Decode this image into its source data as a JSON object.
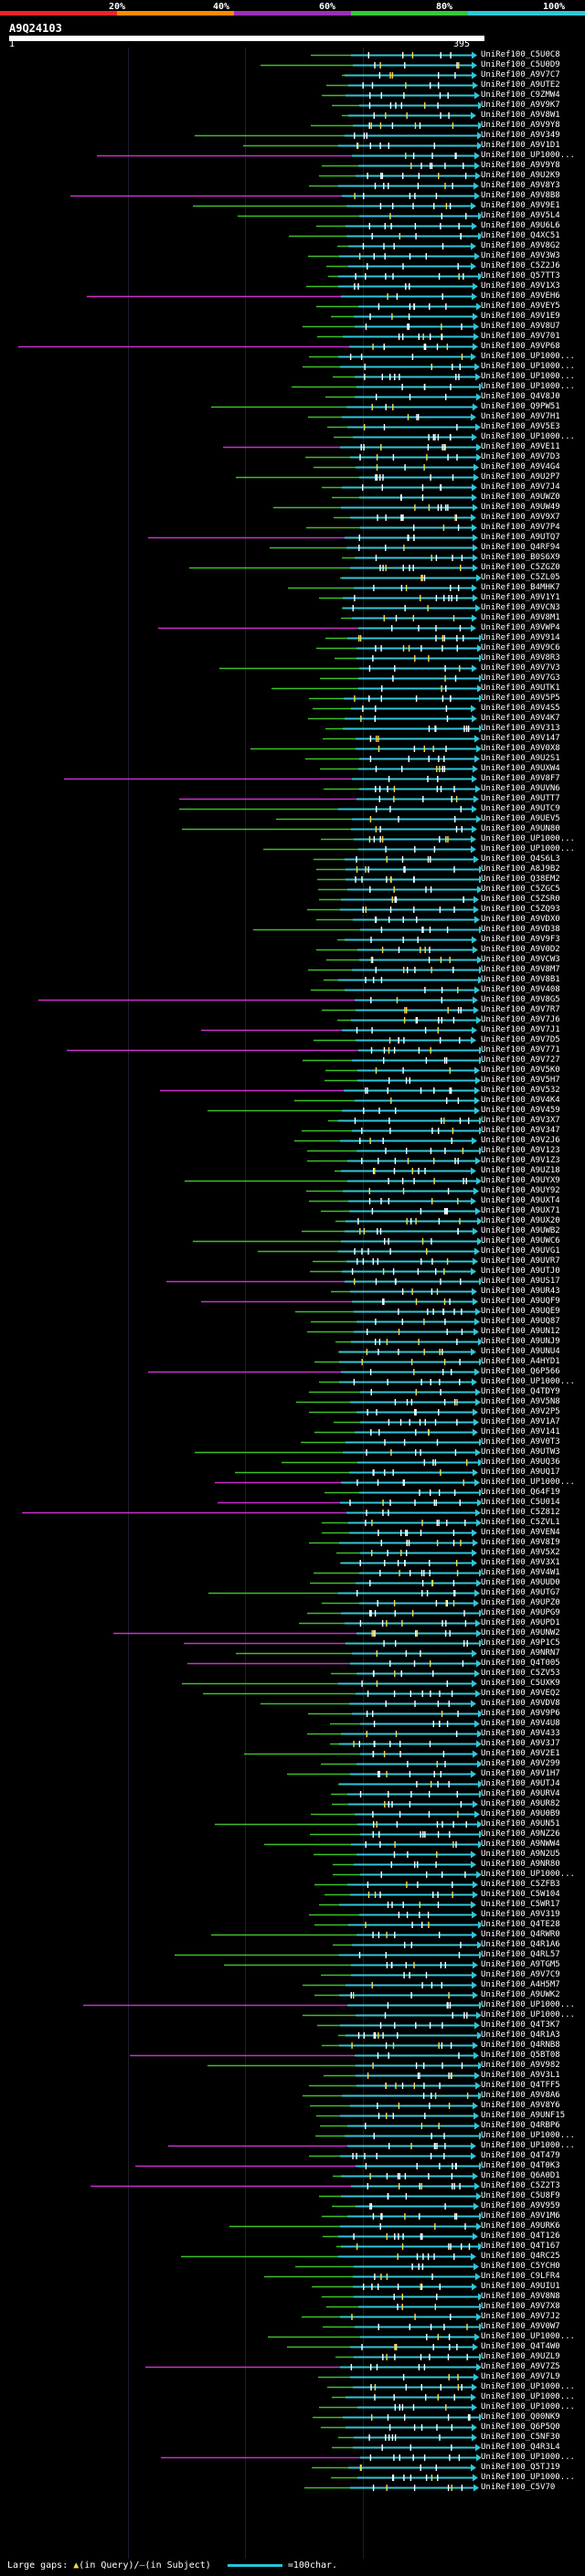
{
  "legend": {
    "labels": [
      "20%",
      "40%",
      "60%",
      "80%",
      "100%"
    ],
    "colors": [
      "#e8262a",
      "#ff8a00",
      "#9b2fb7",
      "#37c83a",
      "#2ec7d8"
    ]
  },
  "query": {
    "title": "A9Q24103",
    "start_label": "1",
    "end_label": "395"
  },
  "colors": {
    "cyan": "#2ec7d8",
    "green": "#3cbf27",
    "magenta": "#cc2fcc",
    "yellow": "#ffd84a",
    "white": "#ffffff"
  },
  "hits": [
    "UniRef100_C5U0C8",
    "UniRef100_C5U0D9",
    "UniRef100_A9V7C7",
    "UniRef100_A9UTE2",
    "UniRef100_C9ZMW4",
    "UniRef100_A9V9K7",
    "UniRef100_A9V8W1",
    "UniRef100_A9V9Y8",
    "UniRef100_A9V349",
    "UniRef100_A9V1D1",
    "UniRef100_UP1000...",
    "UniRef100_A9V9Y8",
    "UniRef100_A9U2K9",
    "UniRef100_A9V8Y3",
    "UniRef100_A9V8B8",
    "UniRef100_A9V9E1",
    "UniRef100_A9V5L4",
    "UniRef100_A9U6L6",
    "UniRef100_Q4XC51",
    "UniRef100_A9V8G2",
    "UniRef100_A9V3W3",
    "UniRef100_C5Z2J6",
    "UniRef100_Q57TT3",
    "UniRef100_A9V1X3",
    "UniRef100_A9VEH6",
    "UniRef100_A9VEY5",
    "UniRef100_A9V1E9",
    "UniRef100_A9V8U7",
    "UniRef100_A9V701",
    "UniRef100_A9VP68",
    "UniRef100_UP1000...",
    "UniRef100_UP1000...",
    "UniRef100_UP1000...",
    "UniRef100_UP1000...",
    "UniRef100_Q4V8J0",
    "UniRef100_Q9PW51",
    "UniRef100_A9V7H1",
    "UniRef100_A9V5E3",
    "UniRef100_UP1000...",
    "UniRef100_A9VE11",
    "UniRef100_A9V7D3",
    "UniRef100_A9V4G4",
    "UniRef100_A9U2P7",
    "UniRef100_A9V7J4",
    "UniRef100_A9UWZ0",
    "UniRef100_A9UW49",
    "UniRef100_A9V9X7",
    "UniRef100_A9V7P4",
    "UniRef100_A9UTQ7",
    "UniRef100_Q4RF94",
    "UniRef100_B0S6X9",
    "UniRef100_C5ZGZ0",
    "UniRef100_C5ZL05",
    "UniRef100_B4MHK7",
    "UniRef100_A9V1Y1",
    "UniRef100_A9VCN3",
    "UniRef100_A9V8M1",
    "UniRef100_A9VWP4",
    "UniRef100_A9V914",
    "UniRef100_A9V9C6",
    "UniRef100_A9V8R3",
    "UniRef100_A9V7V3",
    "UniRef100_A9V7G3",
    "UniRef100_A9UTK1",
    "UniRef100_A9V5P5",
    "UniRef100_A9V4S5",
    "UniRef100_A9V4K7",
    "UniRef100_A9V313",
    "UniRef100_A9V147",
    "UniRef100_A9V0X8",
    "UniRef100_A9U2S1",
    "UniRef100_A9UXW4",
    "UniRef100_A9V8F7",
    "UniRef100_A9UVN6",
    "UniRef100_A9UTT7",
    "UniRef100_A9UTC9",
    "UniRef100_A9UEV5",
    "UniRef100_A9UN80",
    "UniRef100_UP1000...",
    "UniRef100_UP1000...",
    "UniRef100_Q4S6L3",
    "UniRef100_A8J9B2",
    "UniRef100_Q38EM2",
    "UniRef100_C5ZGC5",
    "UniRef100_C5ZSR0",
    "UniRef100_C5ZQ93",
    "UniRef100_A9VDX0",
    "UniRef100_A9VD38",
    "UniRef100_A9V9F3",
    "UniRef100_A9V0D2",
    "UniRef100_A9VCW3",
    "UniRef100_A9V8M7",
    "UniRef100_A9V8B1",
    "UniRef100_A9V408",
    "UniRef100_A9V8G5",
    "UniRef100_A9V7R7",
    "UniRef100_A9V7J6",
    "UniRef100_A9V7J1",
    "UniRef100_A9V7D5",
    "UniRef100_A9V771",
    "UniRef100_A9V727",
    "UniRef100_A9V5K0",
    "UniRef100_A9V5H7",
    "UniRef100_A9V532",
    "UniRef100_A9V4K4",
    "UniRef100_A9V459",
    "UniRef100_A9V3X7",
    "UniRef100_A9V347",
    "UniRef100_A9V2J6",
    "UniRef100_A9V123",
    "UniRef100_A9V1Z3",
    "UniRef100_A9UZ18",
    "UniRef100_A9UYX9",
    "UniRef100_A9UY92",
    "UniRef100_A9UXT4",
    "UniRef100_A9UX71",
    "UniRef100_A9UX20",
    "UniRef100_A9UWB2",
    "UniRef100_A9UWC6",
    "UniRef100_A9UVG1",
    "UniRef100_A9UVR7",
    "UniRef100_A9UTJ0",
    "UniRef100_A9US17",
    "UniRef100_A9UR43",
    "UniRef100_A9UQF9",
    "UniRef100_A9UQE9",
    "UniRef100_A9UQ87",
    "UniRef100_A9UN12",
    "UniRef100_A9UNJ9",
    "UniRef100_A9UNU4",
    "UniRef100_A4HYD1",
    "UniRef100_Q6P566",
    "UniRef100_UP1000...",
    "UniRef100_Q4TDY9",
    "UniRef100_A9V5N8",
    "UniRef100_A9V2P5",
    "UniRef100_A9V1A7",
    "UniRef100_A9V141",
    "UniRef100_A9V0T3",
    "UniRef100_A9UTW3",
    "UniRef100_A9UQ36",
    "UniRef100_A9UQ17",
    "UniRef100_UP1000...",
    "UniRef100_Q64F19",
    "UniRef100_C5U014",
    "UniRef100_C5Z812",
    "UniRef100_C5ZVL1",
    "UniRef100_A9VEN4",
    "UniRef100_A9V8I9",
    "UniRef100_A9V5X2",
    "UniRef100_A9V3X1",
    "UniRef100_A9V4W1",
    "UniRef100_A9UUD0",
    "UniRef100_A9UTG7",
    "UniRef100_A9UPZ0",
    "UniRef100_A9UPG9",
    "UniRef100_A9UPD1",
    "UniRef100_A9UNW2",
    "UniRef100_A9P1C5",
    "UniRef100_A9NRN7",
    "UniRef100_Q4T005",
    "UniRef100_C5ZV53",
    "UniRef100_C5UXK9",
    "UniRef100_A9VEQ2",
    "UniRef100_A9VDV8",
    "UniRef100_A9V9P6",
    "UniRef100_A9V4U8",
    "UniRef100_A9V433",
    "UniRef100_A9V3J7",
    "UniRef100_A9V2E1",
    "UniRef100_A9V299",
    "UniRef100_A9V1H7",
    "UniRef100_A9UTJ4",
    "UniRef100_A9URV4",
    "UniRef100_A9UR82",
    "UniRef100_A9U0B9",
    "UniRef100_A9UN51",
    "UniRef100_A9NZ26",
    "UniRef100_A9NWW4",
    "UniRef100_A9N2U5",
    "UniRef100_A9NR80",
    "UniRef100_UP1000...",
    "UniRef100_C5ZFB3",
    "UniRef100_C5W104",
    "UniRef100_C5WR17",
    "UniRef100_A9V319",
    "UniRef100_Q4TE28",
    "UniRef100_Q4RWR0",
    "UniRef100_Q4R1A6",
    "UniRef100_Q4RL57",
    "UniRef100_A9TGM5",
    "UniRef100_A9V7C9",
    "UniRef100_A4H5M7",
    "UniRef100_A9UWK2",
    "UniRef100_UP1000...",
    "UniRef100_UP1000...",
    "UniRef100_Q4T3K7",
    "UniRef100_Q4R1A3",
    "UniRef100_Q4RNB8",
    "UniRef100_Q5BT08",
    "UniRef100_A9V982",
    "UniRef100_A9V3L1",
    "UniRef100_Q4TFF5",
    "UniRef100_A9V8A6",
    "UniRef100_A9V8Y6",
    "UniRef100_A9UNF15",
    "UniRef100_Q4RBP6",
    "UniRef100_UP1000...",
    "UniRef100_UP1000...",
    "UniRef100_Q4T479",
    "UniRef100_Q4T0K3",
    "UniRef100_Q6A0D1",
    "UniRef100_C5Z2T3",
    "UniRef100_C5U8F9",
    "UniRef100_A9V959",
    "UniRef100_A9V1M6",
    "UniRef100_A9URK6",
    "UniRef100_Q4T126",
    "UniRef100_Q4T167",
    "UniRef100_Q4RC25",
    "UniRef100_C5YCH0",
    "UniRef100_C9LFR4",
    "UniRef100_A9UIU1",
    "UniRef100_A9V8N8",
    "UniRef100_A9V7X8",
    "UniRef100_A9V7J2",
    "UniRef100_A9V0W7",
    "UniRef100_UP1000...",
    "UniRef100_Q4T4W0",
    "UniRef100_A9UZL9",
    "UniRef100_A9V7Z5",
    "UniRef100_A9V7L9",
    "UniRef100_UP1000...",
    "UniRef100_UP1000...",
    "UniRef100_UP1000...",
    "UniRef100_Q00NK9",
    "UniRef100_Q6P5Q0",
    "UniRef100_C5NF30",
    "UniRef100_Q4R3L4",
    "UniRef100_UP1000...",
    "UniRef100_Q5TJ19",
    "UniRef100_UP1000...",
    "UniRef100_C5V70"
  ],
  "footer": {
    "gaps_label": "Large gaps: ",
    "query_gap_symbol": "▲",
    "query_gap_text": "(in Query)/",
    "subject_gap_symbol": "—",
    "subject_gap_text": "(in Subject)",
    "key_text": "=100char."
  }
}
